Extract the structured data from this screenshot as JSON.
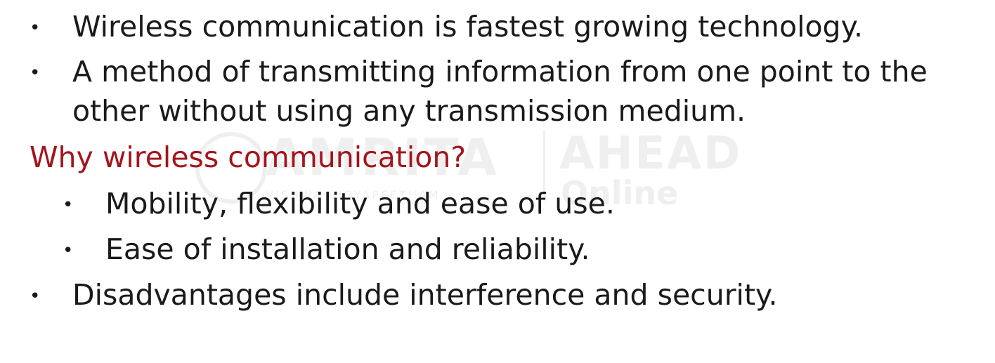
{
  "bullets": [
    {
      "marker": "•",
      "text": "Wireless communication is fastest growing technology."
    },
    {
      "marker": "•",
      "text_line1": "A method of transmitting information from one point to the",
      "text_line2": "other without using any transmission medium."
    }
  ],
  "heading": "Why wireless communication?",
  "sub_bullets": [
    {
      "marker": "•",
      "text": "Mobility, flexibility and ease of use."
    },
    {
      "marker": "•",
      "text": "Ease of installation and reliability."
    }
  ],
  "final_bullet": {
    "marker": "•",
    "text": "Disadvantages include interference and security."
  },
  "watermark": {
    "brand": "AMRITA",
    "sub": "VISHWA VIDYAPEETHAM",
    "partner": "AHEAD",
    "partner_sub": "Online"
  },
  "colors": {
    "text": "#1a1a1a",
    "heading": "#a3151c"
  }
}
